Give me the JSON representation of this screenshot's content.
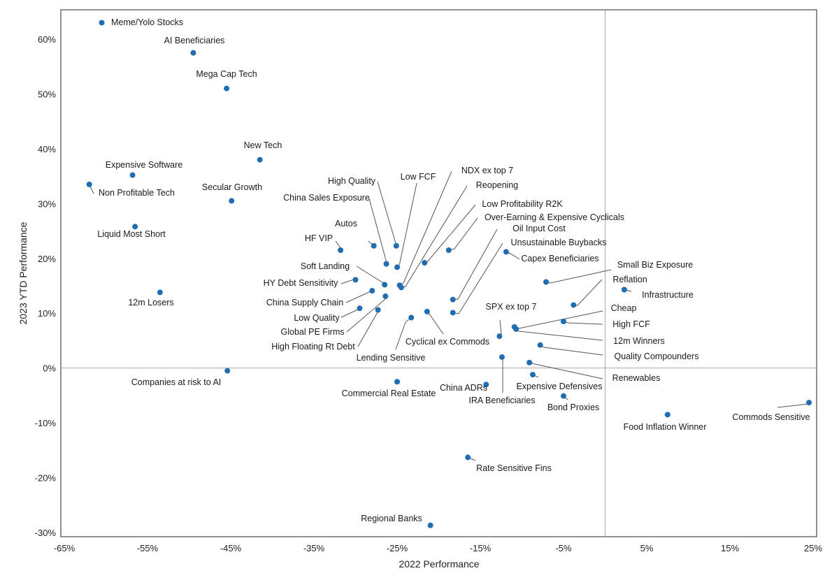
{
  "chart_data": {
    "type": "scatter",
    "title": "",
    "xlabel": "2022 Performance",
    "ylabel": "2023 YTD Performance",
    "xlim": [
      -65,
      25
    ],
    "ylim": [
      -30,
      65
    ],
    "x_ticks": [
      -65,
      -55,
      -45,
      -35,
      -25,
      -15,
      -5,
      5,
      15,
      25
    ],
    "x_tick_labels": [
      "-65%",
      "-55%",
      "-45%",
      "-35%",
      "-25%",
      "-15%",
      "-5%",
      "5%",
      "15%",
      "25%"
    ],
    "y_ticks": [
      -30,
      -20,
      -10,
      0,
      10,
      20,
      30,
      40,
      50,
      60
    ],
    "y_tick_labels": [
      "-30%",
      "-20%",
      "-10%",
      "0%",
      "10%",
      "20%",
      "30%",
      "40%",
      "50%",
      "60%"
    ],
    "reference_lines": {
      "x": 0,
      "y": 0
    },
    "marker_color": "#1f6db3",
    "points": [
      {
        "name": "Meme/Yolo Stocks",
        "x": -60.5,
        "y": 63.0
      },
      {
        "name": "AI Beneficiaries",
        "x": -49.5,
        "y": 57.5
      },
      {
        "name": "Mega Cap Tech",
        "x": -45.5,
        "y": 51.0
      },
      {
        "name": "New Tech",
        "x": -41.5,
        "y": 38.0
      },
      {
        "name": "Expensive Software",
        "x": -56.8,
        "y": 35.2
      },
      {
        "name": "Non Profitable Tech",
        "x": -62.0,
        "y": 33.5
      },
      {
        "name": "Secular Growth",
        "x": -44.9,
        "y": 30.5
      },
      {
        "name": "Liquid Most Short",
        "x": -56.5,
        "y": 25.8
      },
      {
        "name": "12m Losers",
        "x": -53.5,
        "y": 13.8
      },
      {
        "name": "Companies at risk to AI",
        "x": -45.4,
        "y": -0.5
      },
      {
        "name": "High Quality",
        "x": -25.1,
        "y": 22.3
      },
      {
        "name": "Low FCF",
        "x": -25.0,
        "y": 18.4
      },
      {
        "name": "China Sales Exposure",
        "x": -26.3,
        "y": 19.0
      },
      {
        "name": "NDX ex top 7",
        "x": -24.7,
        "y": 15.1
      },
      {
        "name": "Reopening",
        "x": -24.5,
        "y": 14.7
      },
      {
        "name": "Low Profitability R2K",
        "x": -21.7,
        "y": 19.2
      },
      {
        "name": "Over-Earning & Expensive Cyclicals",
        "x": -18.8,
        "y": 21.5
      },
      {
        "name": "Oil Input Cost",
        "x": -18.3,
        "y": 12.5
      },
      {
        "name": "Unsustainable Buybacks",
        "x": -18.3,
        "y": 10.1
      },
      {
        "name": "Capex Beneficiaries",
        "x": -11.9,
        "y": 21.2
      },
      {
        "name": "Autos",
        "x": -27.8,
        "y": 22.3
      },
      {
        "name": "HF VIP",
        "x": -31.8,
        "y": 21.5
      },
      {
        "name": "Soft Landing",
        "x": -26.5,
        "y": 15.2
      },
      {
        "name": "HY Debt Sensitivity",
        "x": -30.0,
        "y": 16.1
      },
      {
        "name": "China Supply Chain",
        "x": -28.0,
        "y": 14.1
      },
      {
        "name": "Low Quality",
        "x": -29.5,
        "y": 10.9
      },
      {
        "name": "Global PE Firms",
        "x": -26.4,
        "y": 13.1
      },
      {
        "name": "High Floating Rt Debt",
        "x": -27.3,
        "y": 10.6
      },
      {
        "name": "Lending Sensitive",
        "x": -23.3,
        "y": 9.2
      },
      {
        "name": "Cyclical ex Commods",
        "x": -21.4,
        "y": 10.3
      },
      {
        "name": "Commercial Real Estate",
        "x": -25.0,
        "y": -2.5
      },
      {
        "name": "China ADRs",
        "x": -14.3,
        "y": -3.0
      },
      {
        "name": "IRA Beneficiaries",
        "x": -12.4,
        "y": 2.0
      },
      {
        "name": "SPX ex top 7",
        "x": -12.7,
        "y": 5.8
      },
      {
        "name": "Small Biz Exposure",
        "x": -7.1,
        "y": 15.7
      },
      {
        "name": "Reflation",
        "x": -3.8,
        "y": 11.5
      },
      {
        "name": "Infrastructure",
        "x": 2.3,
        "y": 14.3
      },
      {
        "name": "Cheap",
        "x": -10.9,
        "y": 7.5
      },
      {
        "name": "High FCF",
        "x": -5.0,
        "y": 8.5
      },
      {
        "name": "12m Winners",
        "x": -10.7,
        "y": 7.1
      },
      {
        "name": "Quality Compounders",
        "x": -7.8,
        "y": 4.2
      },
      {
        "name": "Renewables",
        "x": -9.1,
        "y": 1.0
      },
      {
        "name": "Expensive Defensives",
        "x": -8.7,
        "y": -1.2
      },
      {
        "name": "Bond Proxies",
        "x": -5.0,
        "y": -5.1
      },
      {
        "name": "Food Inflation Winner",
        "x": 7.5,
        "y": -8.5
      },
      {
        "name": "Commods Sensitive",
        "x": 24.5,
        "y": -6.3
      },
      {
        "name": "Rate Sensitive Fins",
        "x": -16.5,
        "y": -16.3
      },
      {
        "name": "Regional Banks",
        "x": -21.0,
        "y": -28.7
      }
    ]
  }
}
